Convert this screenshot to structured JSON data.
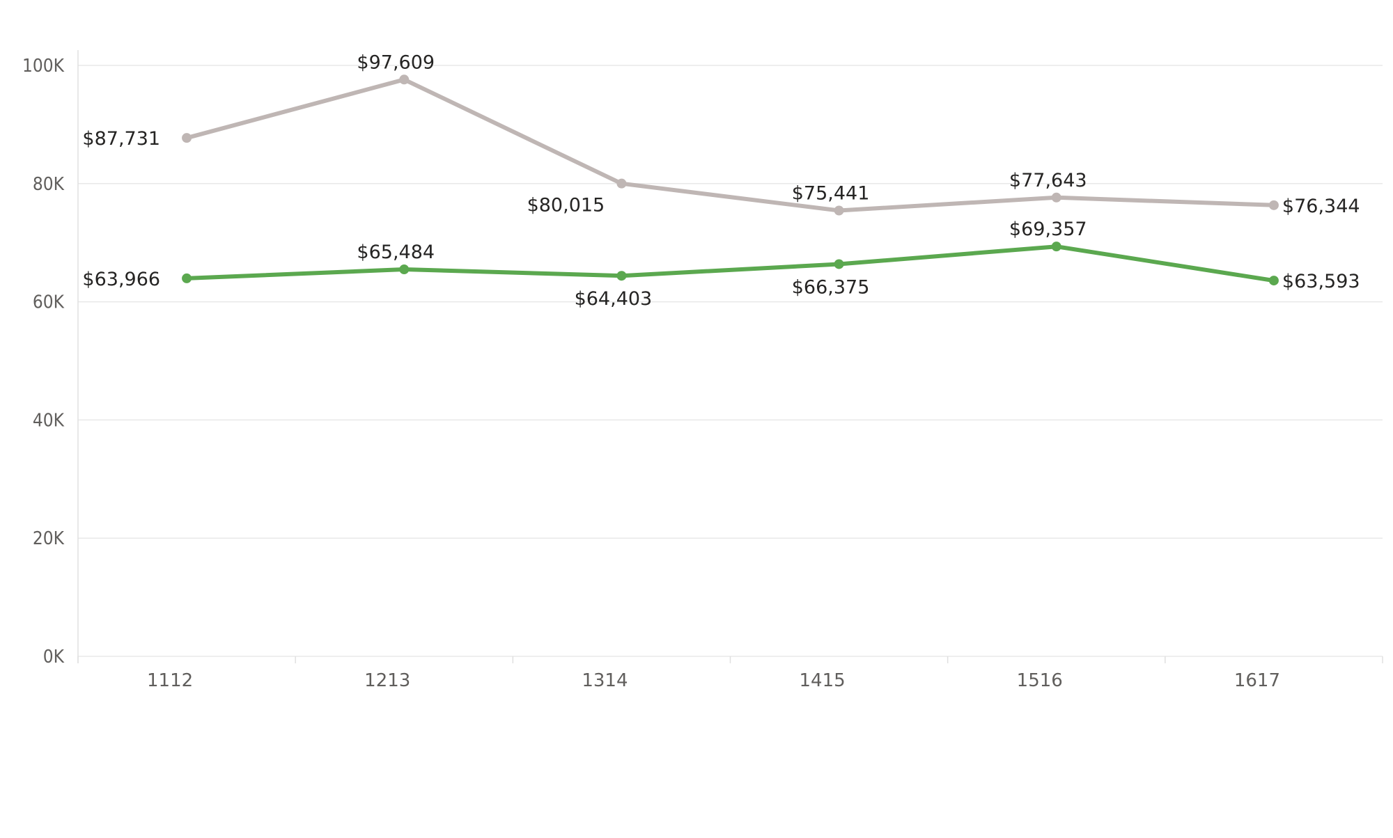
{
  "chart_data": {
    "type": "line",
    "title": "",
    "xlabel": "",
    "ylabel": "",
    "categories": [
      "1112",
      "1213",
      "1314",
      "1415",
      "1516",
      "1617"
    ],
    "ylim": [
      0,
      100000
    ],
    "y_ticks": [
      0,
      20000,
      40000,
      60000,
      80000,
      100000
    ],
    "y_tick_labels": [
      "0K",
      "20K",
      "40K",
      "60K",
      "80K",
      "100K"
    ],
    "grid": true,
    "legend": "none",
    "series": [
      {
        "color": "#bfb6b4",
        "values": [
          87731,
          97609,
          80015,
          75441,
          77643,
          76344
        ],
        "labels": [
          "$87,731",
          "$97,609",
          "$80,015",
          "$75,441",
          "$77,643",
          "$76,344"
        ]
      },
      {
        "color": "#5ba84f",
        "values": [
          63966,
          65484,
          64403,
          66375,
          69357,
          63593
        ],
        "labels": [
          "$63,966",
          "$65,484",
          "$64,403",
          "$66,375",
          "$69,357",
          "$63,593"
        ]
      }
    ]
  }
}
